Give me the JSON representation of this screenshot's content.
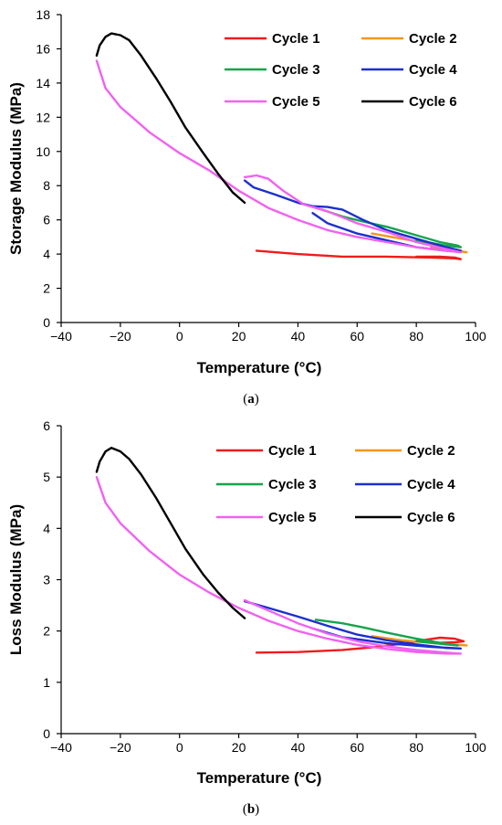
{
  "colors": {
    "Cycle 1": "#ee1c1c",
    "Cycle 2": "#f7941d",
    "Cycle 3": "#16a54b",
    "Cycle 4": "#1c2fcf",
    "Cycle 5": "#f062f0",
    "Cycle 6": "#000000"
  },
  "chart_data": [
    {
      "type": "line",
      "caption_letter": "a",
      "xlabel": "Temperature (°C)",
      "ylabel": "Storage Modulus (MPa)",
      "xlim": [
        -40,
        100
      ],
      "ylim": [
        0,
        18
      ],
      "xticks": [
        -40,
        -20,
        0,
        20,
        40,
        60,
        80,
        100
      ],
      "yticks": [
        0,
        2,
        4,
        6,
        8,
        10,
        12,
        14,
        16,
        18
      ],
      "legend_position": "top-right",
      "series": [
        {
          "name": "Cycle 1",
          "points": [
            [
              26,
              4.2
            ],
            [
              40,
              4.0
            ],
            [
              55,
              3.85
            ],
            [
              70,
              3.85
            ],
            [
              85,
              3.8
            ],
            [
              93,
              3.75
            ],
            [
              95,
              3.7
            ],
            [
              93,
              3.8
            ],
            [
              88,
              3.85
            ],
            [
              80,
              3.85
            ]
          ]
        },
        {
          "name": "Cycle 2",
          "points": [
            [
              65,
              5.2
            ],
            [
              75,
              4.9
            ],
            [
              85,
              4.6
            ],
            [
              92,
              4.3
            ],
            [
              97,
              4.1
            ],
            [
              93,
              4.2
            ],
            [
              85,
              4.4
            ]
          ]
        },
        {
          "name": "Cycle 3",
          "points": [
            [
              48,
              6.6
            ],
            [
              55,
              6.2
            ],
            [
              62,
              5.9
            ],
            [
              70,
              5.6
            ],
            [
              80,
              5.1
            ],
            [
              88,
              4.7
            ],
            [
              94,
              4.5
            ],
            [
              95,
              4.4
            ],
            [
              90,
              4.5
            ],
            [
              80,
              4.8
            ]
          ]
        },
        {
          "name": "Cycle 4",
          "points": [
            [
              22,
              8.3
            ],
            [
              25,
              7.9
            ],
            [
              32,
              7.5
            ],
            [
              40,
              7.0
            ],
            [
              45,
              6.8
            ],
            [
              50,
              6.75
            ],
            [
              55,
              6.6
            ],
            [
              62,
              6.0
            ],
            [
              70,
              5.4
            ],
            [
              80,
              4.9
            ],
            [
              90,
              4.4
            ],
            [
              95,
              4.2
            ],
            [
              90,
              4.2
            ],
            [
              80,
              4.4
            ],
            [
              70,
              4.8
            ],
            [
              60,
              5.2
            ],
            [
              50,
              5.8
            ],
            [
              45,
              6.4
            ]
          ]
        },
        {
          "name": "Cycle 5",
          "points": [
            [
              -28,
              15.3
            ],
            [
              -25,
              13.7
            ],
            [
              -20,
              12.6
            ],
            [
              -10,
              11.1
            ],
            [
              0,
              9.9
            ],
            [
              10,
              8.9
            ],
            [
              20,
              7.7
            ],
            [
              30,
              6.7
            ],
            [
              40,
              6.0
            ],
            [
              50,
              5.4
            ],
            [
              60,
              5.0
            ],
            [
              70,
              4.7
            ],
            [
              80,
              4.4
            ],
            [
              90,
              4.2
            ],
            [
              95,
              4.1
            ],
            [
              90,
              4.3
            ],
            [
              80,
              4.7
            ],
            [
              70,
              5.3
            ],
            [
              60,
              5.8
            ],
            [
              50,
              6.5
            ],
            [
              42,
              6.9
            ],
            [
              35,
              7.7
            ],
            [
              30,
              8.4
            ],
            [
              26,
              8.6
            ],
            [
              22,
              8.5
            ]
          ]
        },
        {
          "name": "Cycle 6",
          "points": [
            [
              -28,
              15.6
            ],
            [
              -27,
              16.2
            ],
            [
              -25,
              16.7
            ],
            [
              -23,
              16.9
            ],
            [
              -20,
              16.8
            ],
            [
              -17,
              16.5
            ],
            [
              -13,
              15.6
            ],
            [
              -8,
              14.3
            ],
            [
              -3,
              12.9
            ],
            [
              2,
              11.4
            ],
            [
              8,
              9.9
            ],
            [
              13,
              8.7
            ],
            [
              18,
              7.6
            ],
            [
              22,
              7.0
            ]
          ]
        }
      ]
    },
    {
      "type": "line",
      "caption_letter": "b",
      "xlabel": "Temperature (°C)",
      "ylabel": "Loss Modulus (MPa)",
      "xlim": [
        -40,
        100
      ],
      "ylim": [
        0,
        6
      ],
      "xticks": [
        -40,
        -20,
        0,
        20,
        40,
        60,
        80,
        100
      ],
      "yticks": [
        0,
        1,
        2,
        3,
        4,
        5,
        6
      ],
      "legend_position": "top-right",
      "series": [
        {
          "name": "Cycle 1",
          "points": [
            [
              26,
              1.58
            ],
            [
              40,
              1.59
            ],
            [
              55,
              1.63
            ],
            [
              65,
              1.68
            ],
            [
              75,
              1.75
            ],
            [
              82,
              1.82
            ],
            [
              88,
              1.87
            ],
            [
              93,
              1.85
            ],
            [
              96,
              1.8
            ],
            [
              93,
              1.78
            ],
            [
              88,
              1.77
            ]
          ]
        },
        {
          "name": "Cycle 2",
          "points": [
            [
              65,
              1.9
            ],
            [
              75,
              1.82
            ],
            [
              85,
              1.77
            ],
            [
              92,
              1.74
            ],
            [
              97,
              1.72
            ],
            [
              93,
              1.73
            ]
          ]
        },
        {
          "name": "Cycle 3",
          "points": [
            [
              46,
              2.22
            ],
            [
              55,
              2.15
            ],
            [
              62,
              2.07
            ],
            [
              70,
              1.97
            ],
            [
              80,
              1.85
            ],
            [
              88,
              1.77
            ],
            [
              94,
              1.72
            ],
            [
              90,
              1.74
            ],
            [
              80,
              1.8
            ]
          ]
        },
        {
          "name": "Cycle 4",
          "points": [
            [
              22,
              2.58
            ],
            [
              30,
              2.45
            ],
            [
              40,
              2.28
            ],
            [
              50,
              2.1
            ],
            [
              60,
              1.93
            ],
            [
              70,
              1.82
            ],
            [
              80,
              1.74
            ],
            [
              90,
              1.67
            ],
            [
              95,
              1.66
            ],
            [
              85,
              1.69
            ],
            [
              70,
              1.76
            ],
            [
              55,
              1.88
            ],
            [
              45,
              2.05
            ]
          ]
        },
        {
          "name": "Cycle 5",
          "points": [
            [
              -28,
              5.0
            ],
            [
              -25,
              4.5
            ],
            [
              -20,
              4.1
            ],
            [
              -10,
              3.55
            ],
            [
              0,
              3.1
            ],
            [
              10,
              2.75
            ],
            [
              20,
              2.45
            ],
            [
              30,
              2.2
            ],
            [
              40,
              2.0
            ],
            [
              50,
              1.85
            ],
            [
              60,
              1.73
            ],
            [
              70,
              1.65
            ],
            [
              80,
              1.59
            ],
            [
              90,
              1.56
            ],
            [
              95,
              1.56
            ],
            [
              90,
              1.58
            ],
            [
              80,
              1.63
            ],
            [
              70,
              1.7
            ],
            [
              60,
              1.8
            ],
            [
              50,
              1.95
            ],
            [
              40,
              2.15
            ],
            [
              30,
              2.4
            ],
            [
              22,
              2.6
            ]
          ]
        },
        {
          "name": "Cycle 6",
          "points": [
            [
              -28,
              5.1
            ],
            [
              -27,
              5.3
            ],
            [
              -25,
              5.5
            ],
            [
              -23,
              5.57
            ],
            [
              -20,
              5.5
            ],
            [
              -17,
              5.35
            ],
            [
              -13,
              5.05
            ],
            [
              -8,
              4.6
            ],
            [
              -3,
              4.1
            ],
            [
              2,
              3.6
            ],
            [
              8,
              3.1
            ],
            [
              13,
              2.75
            ],
            [
              18,
              2.45
            ],
            [
              22,
              2.25
            ]
          ]
        }
      ]
    }
  ]
}
